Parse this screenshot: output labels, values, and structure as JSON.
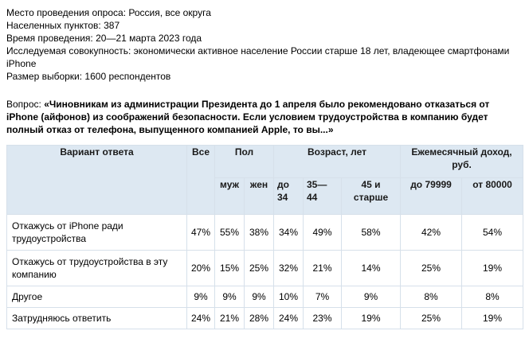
{
  "meta": {
    "place": "Место проведения опроса: Россия, все округа",
    "settlements": "Населенных пунктов: 387",
    "time": "Время проведения: 20—21 марта 2023 года",
    "population": "Исследуемая совокупность: экономически активное население России старше 18 лет, владеющее смартфонами iPhone",
    "sample": "Размер выборки: 1600 респондентов"
  },
  "question": {
    "prefix": "Вопрос: ",
    "text": "«Чиновникам из администрации Президента до 1 апреля было рекомендовано отказаться от iPhone (айфонов) из соображений безопасности. Если условием трудоустройства в компанию будет полный отказ от телефона, выпущенного компанией Apple, то вы...»"
  },
  "table": {
    "headers": {
      "variant": "Вариант ответа",
      "all": "Все",
      "gender": "Пол",
      "age": "Возраст, лет",
      "income": "Ежемесячный доход, руб.",
      "male": "муж",
      "female": "жен",
      "age1": "до 34",
      "age2": "35— 44",
      "age3": "45 и старше",
      "inc1": "до 79999",
      "inc2": "от 80000"
    },
    "rows": [
      {
        "label": "Откажусь от iPhone ради трудоустройства",
        "values": [
          "47%",
          "55%",
          "38%",
          "34%",
          "49%",
          "58%",
          "42%",
          "54%"
        ]
      },
      {
        "label": "Откажусь от трудоустройства в эту компанию",
        "values": [
          "20%",
          "15%",
          "25%",
          "32%",
          "21%",
          "14%",
          "25%",
          "19%"
        ]
      },
      {
        "label": "Другое",
        "values": [
          "9%",
          "9%",
          "9%",
          "10%",
          "7%",
          "9%",
          "8%",
          "8%"
        ]
      },
      {
        "label": "Затрудняюсь ответить",
        "values": [
          "24%",
          "21%",
          "28%",
          "24%",
          "23%",
          "19%",
          "25%",
          "19%"
        ]
      }
    ]
  }
}
